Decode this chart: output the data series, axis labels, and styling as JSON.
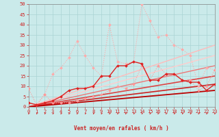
{
  "bg_color": "#caeaea",
  "grid_color": "#aad4d4",
  "xlabel": "Vent moyen/en rafales ( km/h )",
  "xlim": [
    0,
    23
  ],
  "ylim": [
    0,
    50
  ],
  "xticks": [
    0,
    1,
    2,
    3,
    4,
    5,
    6,
    7,
    8,
    9,
    10,
    11,
    12,
    13,
    14,
    15,
    16,
    17,
    18,
    19,
    20,
    21,
    22,
    23
  ],
  "yticks": [
    0,
    5,
    10,
    15,
    20,
    25,
    30,
    35,
    40,
    45,
    50
  ],
  "lines": [
    {
      "x": [
        0,
        1,
        2,
        3,
        4,
        5,
        6,
        7,
        8,
        9,
        10,
        11,
        12,
        13,
        14,
        15,
        16,
        17,
        18,
        19,
        20,
        21,
        22,
        23
      ],
      "y": [
        2,
        1,
        6,
        16,
        19,
        24,
        32,
        25,
        19,
        15,
        40,
        22,
        21,
        22,
        50,
        42,
        34,
        35,
        30,
        28,
        25,
        10,
        19,
        18
      ],
      "color": "#ffaaaa",
      "lw": 0.8,
      "marker": "D",
      "ms": 2.0,
      "linestyle": "dotted",
      "zorder": 3
    },
    {
      "x": [
        0,
        1,
        2,
        3,
        4,
        5,
        6,
        7,
        8,
        9,
        10,
        11,
        12,
        13,
        14,
        15,
        16,
        17,
        18,
        19,
        20,
        21,
        22,
        23
      ],
      "y": [
        9,
        1,
        6,
        2,
        2,
        2,
        3,
        4,
        5,
        6,
        8,
        10,
        9,
        11,
        20,
        13,
        20,
        16,
        16,
        13,
        13,
        8,
        10,
        18
      ],
      "color": "#ff9999",
      "lw": 0.8,
      "marker": "D",
      "ms": 2.0,
      "linestyle": "dotted",
      "zorder": 3
    },
    {
      "x": [
        0,
        1,
        2,
        3,
        4,
        5,
        6,
        7,
        8,
        9,
        10,
        11,
        12,
        13,
        14,
        15,
        16,
        17,
        18,
        19,
        20,
        21,
        22,
        23
      ],
      "y": [
        2,
        1,
        2,
        3,
        5,
        8,
        9,
        9,
        10,
        15,
        15,
        20,
        20,
        22,
        21,
        13,
        13,
        16,
        16,
        13,
        12,
        12,
        8,
        11
      ],
      "color": "#dd2222",
      "lw": 1.0,
      "marker": "D",
      "ms": 2.0,
      "linestyle": "solid",
      "zorder": 4
    },
    {
      "x": [
        0,
        23
      ],
      "y": [
        0,
        30
      ],
      "color": "#ffbbbb",
      "lw": 1.0,
      "marker": null,
      "ms": 0,
      "linestyle": "solid",
      "zorder": 2
    },
    {
      "x": [
        0,
        23
      ],
      "y": [
        0,
        25
      ],
      "color": "#ffcccc",
      "lw": 1.0,
      "marker": null,
      "ms": 0,
      "linestyle": "solid",
      "zorder": 2
    },
    {
      "x": [
        0,
        23
      ],
      "y": [
        0,
        20
      ],
      "color": "#ee7777",
      "lw": 1.0,
      "marker": null,
      "ms": 0,
      "linestyle": "solid",
      "zorder": 2
    },
    {
      "x": [
        0,
        23
      ],
      "y": [
        0,
        15
      ],
      "color": "#dd4444",
      "lw": 1.2,
      "marker": null,
      "ms": 0,
      "linestyle": "solid",
      "zorder": 2
    },
    {
      "x": [
        0,
        23
      ],
      "y": [
        0,
        11
      ],
      "color": "#cc2222",
      "lw": 1.2,
      "marker": null,
      "ms": 0,
      "linestyle": "solid",
      "zorder": 2
    },
    {
      "x": [
        0,
        23
      ],
      "y": [
        0,
        8
      ],
      "color": "#bb0000",
      "lw": 1.3,
      "marker": null,
      "ms": 0,
      "linestyle": "solid",
      "zorder": 2
    }
  ],
  "arrow_color": "#cc2222",
  "label_color": "#cc2222",
  "label_fontsize": 5.5,
  "tick_fontsize": 5.0
}
